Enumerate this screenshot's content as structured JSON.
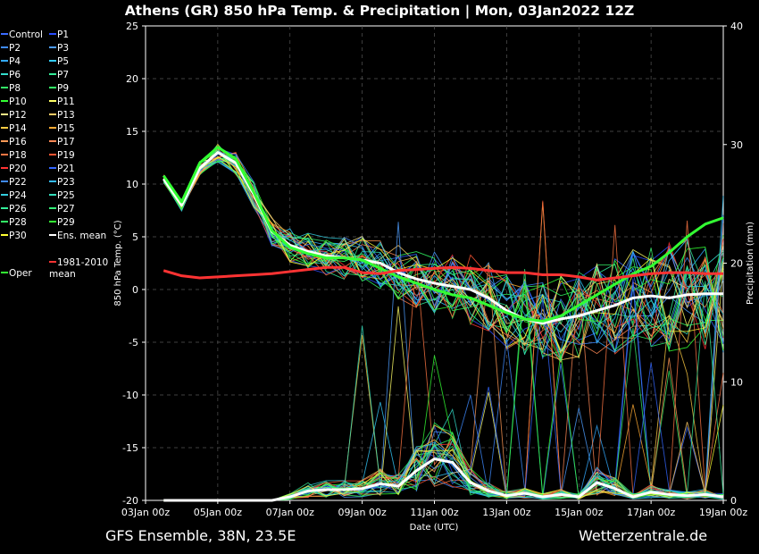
{
  "title": "Athens  (GR)  850 hPa Temp. & Precipitation | Mon, 03Jan2022 12Z",
  "footer": {
    "left": "GFS Ensemble, 38N, 23.5E",
    "right": "Wetterzentrale.de"
  },
  "colors": {
    "background": "#000000",
    "grid": "#555555",
    "oper": "#33ff33",
    "ens_mean": "#ffffff",
    "climate_mean": "#ff3333"
  },
  "legend": [
    {
      "label": "Control",
      "color": "#3a6bff"
    },
    {
      "label": "P1",
      "color": "#2a4dff"
    },
    {
      "label": "P2",
      "color": "#3f8bff"
    },
    {
      "label": "P3",
      "color": "#4d9dff"
    },
    {
      "label": "P4",
      "color": "#33aaff"
    },
    {
      "label": "P5",
      "color": "#33ccff"
    },
    {
      "label": "P6",
      "color": "#33ddcc"
    },
    {
      "label": "P7",
      "color": "#33ee99"
    },
    {
      "label": "P8",
      "color": "#33ee66"
    },
    {
      "label": "P9",
      "color": "#33ff66"
    },
    {
      "label": "P10",
      "color": "#33ff33"
    },
    {
      "label": "P11",
      "color": "#ffff66"
    },
    {
      "label": "P12",
      "color": "#ffee88"
    },
    {
      "label": "P13",
      "color": "#ffcc66"
    },
    {
      "label": "P14",
      "color": "#ffcc44"
    },
    {
      "label": "P15",
      "color": "#ffaa33"
    },
    {
      "label": "P16",
      "color": "#ff9955"
    },
    {
      "label": "P17",
      "color": "#ff8855"
    },
    {
      "label": "P18",
      "color": "#ff7744"
    },
    {
      "label": "P19",
      "color": "#ff5533"
    },
    {
      "label": "P20",
      "color": "#ff3333"
    },
    {
      "label": "P21",
      "color": "#3366ff"
    },
    {
      "label": "P22",
      "color": "#3f8bff"
    },
    {
      "label": "P23",
      "color": "#33bbff"
    },
    {
      "label": "P24",
      "color": "#33ccdd"
    },
    {
      "label": "P25",
      "color": "#33ddbb"
    },
    {
      "label": "P26",
      "color": "#33ee99"
    },
    {
      "label": "P27",
      "color": "#33ee77"
    },
    {
      "label": "P28",
      "color": "#33ff66"
    },
    {
      "label": "P29",
      "color": "#33ff33"
    },
    {
      "label": "P30",
      "color": "#ffff33"
    },
    {
      "label": "Ens. mean",
      "color": "#ffffff"
    },
    {
      "label": "Oper",
      "color": "#33ff33"
    },
    {
      "label": "1981-2010\nmean",
      "color": "#ff3333"
    }
  ],
  "chart_data": {
    "type": "line",
    "title": "Athens  (GR)  850 hPa Temp. & Precipitation | Mon, 03Jan2022 12Z",
    "xlabel": "Date (UTC)",
    "ylabel": "850 hPa Temp. (°C)",
    "y2label": "Precipitation (mm)",
    "x_ticks": [
      "03Jan 00z",
      "05Jan 00z",
      "07Jan 00z",
      "09Jan 00z",
      "11Jan 00z",
      "13Jan 00z",
      "15Jan 00z",
      "17Jan 00z",
      "19Jan 00z"
    ],
    "xlim_hours": [
      0,
      384
    ],
    "ylim": [
      -20,
      25
    ],
    "y_ticks": [
      25,
      20,
      15,
      10,
      5,
      0,
      -5,
      -10,
      -15,
      -20
    ],
    "y2lim": [
      0,
      40
    ],
    "y2_ticks": [
      40,
      30,
      20,
      10,
      0
    ],
    "grid": true,
    "legend_position": "left-outside",
    "hours": [
      12,
      24,
      36,
      48,
      60,
      72,
      84,
      96,
      108,
      120,
      132,
      144,
      156,
      168,
      180,
      192,
      204,
      216,
      228,
      240,
      252,
      264,
      276,
      288,
      300,
      312,
      324,
      336,
      348,
      360,
      372,
      384
    ],
    "series": [
      {
        "name": "Ens. mean",
        "axis": "temp",
        "values": [
          10.5,
          8.0,
          11.5,
          13.0,
          12.0,
          9.0,
          5.5,
          4.2,
          3.6,
          3.2,
          3.0,
          2.8,
          2.5,
          1.6,
          1.0,
          0.6,
          0.3,
          0.0,
          -0.8,
          -2.0,
          -2.8,
          -3.2,
          -2.8,
          -2.5,
          -2.0,
          -1.5,
          -0.8,
          -0.6,
          -0.8,
          -0.5,
          -0.4,
          -0.4
        ]
      },
      {
        "name": "Oper",
        "axis": "temp",
        "values": [
          10.8,
          8.3,
          12.0,
          13.5,
          12.4,
          9.2,
          5.6,
          4.0,
          3.4,
          3.0,
          3.0,
          2.8,
          2.0,
          1.2,
          0.6,
          0.0,
          -0.5,
          -0.8,
          -1.5,
          -2.2,
          -2.8,
          -3.0,
          -2.5,
          -1.5,
          -0.5,
          0.5,
          1.5,
          2.2,
          3.5,
          5.0,
          6.2,
          6.8
        ]
      },
      {
        "name": "1981-2010 mean",
        "axis": "temp",
        "values": [
          1.8,
          1.3,
          1.1,
          1.2,
          1.3,
          1.4,
          1.5,
          1.7,
          1.9,
          2.1,
          2.1,
          1.6,
          1.5,
          1.8,
          1.9,
          2.0,
          2.1,
          2.0,
          1.8,
          1.6,
          1.6,
          1.4,
          1.4,
          1.2,
          0.9,
          1.1,
          1.3,
          1.5,
          1.6,
          1.6,
          1.5,
          1.5
        ]
      },
      {
        "name": "Ens. mean precipitation",
        "axis": "precip",
        "values": [
          0,
          0,
          0,
          0,
          0,
          0,
          0,
          0.3,
          0.8,
          0.9,
          0.9,
          1.0,
          1.4,
          1.2,
          2.5,
          3.5,
          3.2,
          1.5,
          0.8,
          0.4,
          0.6,
          0.3,
          0.5,
          0.3,
          1.5,
          1.0,
          0.3,
          0.7,
          0.5,
          0.4,
          0.5,
          0.3
        ]
      }
    ]
  }
}
